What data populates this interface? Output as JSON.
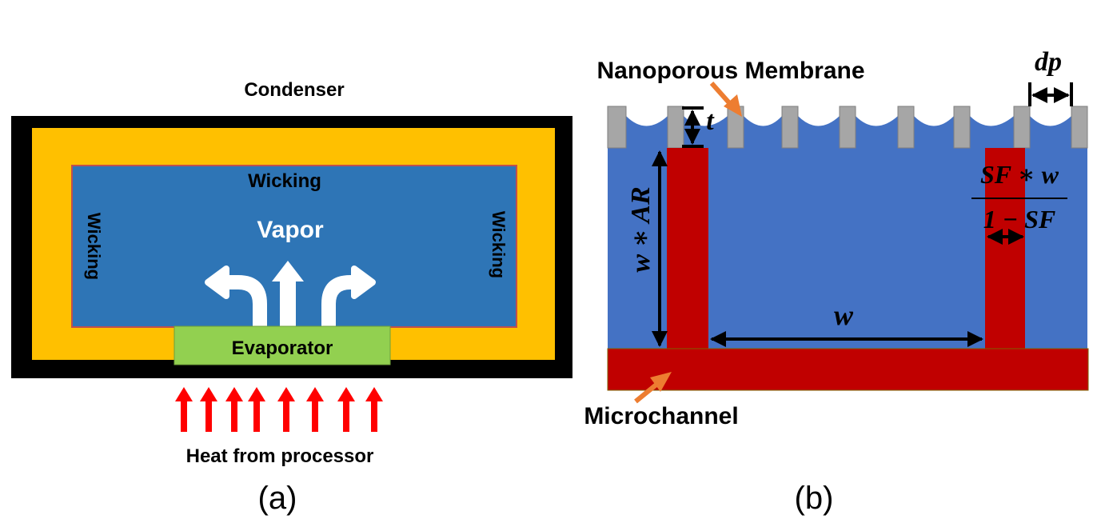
{
  "panel_a": {
    "condenser_label": "Condenser",
    "wicking_top": "Wicking",
    "wicking_left": "Wicking",
    "wicking_right": "Wicking",
    "vapor_label": "Vapor",
    "evaporator_label": "Evaporator",
    "heat_label": "Heat from processor",
    "caption": "(a)",
    "colors": {
      "outer_shell": "#000000",
      "wick": "#ffc000",
      "vapor_core": "#2e75b6",
      "evaporator": "#92d050",
      "heat_arrows": "#ff0000",
      "vapor_arrows": "#ffffff"
    }
  },
  "panel_b": {
    "membrane_label": "Nanoporous Membrane",
    "microchannel_label": "Microchannel",
    "dim_dp": "dp",
    "dim_t": "t",
    "dim_w_ar": "w ∗ AR",
    "dim_w": "w",
    "sf_numerator": "SF ∗ w",
    "sf_denominator": "1 − SF",
    "caption": "(b)",
    "colors": {
      "fluid": "#4472c4",
      "wall": "#c00000",
      "membrane_pillar": "#a6a6a6",
      "pointer_arrow": "#ed7d31"
    }
  }
}
